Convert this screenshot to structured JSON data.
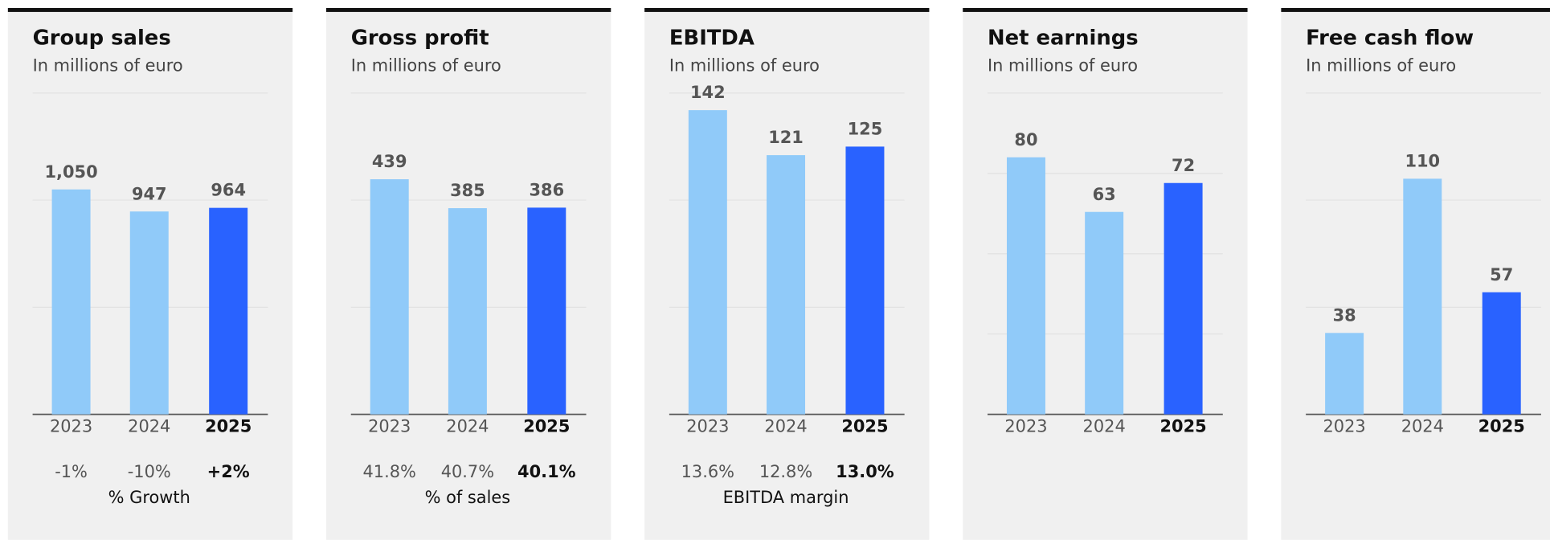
{
  "chart_data": [
    {
      "type": "bar",
      "title": "Group sales",
      "subtitle": "In millions of euro",
      "categories": [
        "2023",
        "2024",
        "2025"
      ],
      "values": [
        1050,
        947,
        964
      ],
      "value_labels": [
        "1,050",
        "947",
        "964"
      ],
      "colors": [
        "#90caf9",
        "#90caf9",
        "#2962ff"
      ],
      "highlight": 2,
      "ylim": [
        0,
        1500
      ],
      "yticks": [
        0,
        500,
        1000,
        1500
      ],
      "grid": true,
      "footer": {
        "values": [
          "-1%",
          "-10%",
          "+2%"
        ],
        "label": "% Growth"
      }
    },
    {
      "type": "bar",
      "title": "Gross profit",
      "subtitle": "In millions of euro",
      "categories": [
        "2023",
        "2024",
        "2025"
      ],
      "values": [
        439,
        385,
        386
      ],
      "colors": [
        "#90caf9",
        "#90caf9",
        "#2962ff"
      ],
      "highlight": 2,
      "ylim": [
        0,
        600
      ],
      "yticks": [
        0,
        200,
        400,
        600
      ],
      "grid": true,
      "footer": {
        "values": [
          "41.8%",
          "40.7%",
          "40.1%"
        ],
        "label": "% of sales"
      }
    },
    {
      "type": "bar",
      "title": "EBITDA",
      "subtitle": "In millions of euro",
      "categories": [
        "2023",
        "2024",
        "2025"
      ],
      "values": [
        142,
        121,
        125
      ],
      "colors": [
        "#90caf9",
        "#90caf9",
        "#2962ff"
      ],
      "highlight": 2,
      "ylim": [
        0,
        150
      ],
      "yticks": [
        0,
        50,
        100,
        150
      ],
      "grid": true,
      "footer": {
        "values": [
          "13.6%",
          "12.8%",
          "13.0%"
        ],
        "label": "EBITDA margin"
      }
    },
    {
      "type": "bar",
      "title": "Net earnings",
      "subtitle": "In millions of euro",
      "categories": [
        "2023",
        "2024",
        "2025"
      ],
      "values": [
        80,
        63,
        72
      ],
      "colors": [
        "#90caf9",
        "#90caf9",
        "#2962ff"
      ],
      "highlight": 2,
      "ylim": [
        0,
        100
      ],
      "yticks": [
        0,
        25,
        50,
        75,
        100
      ],
      "grid": true
    },
    {
      "type": "bar",
      "title": "Free cash flow",
      "subtitle": "In millions of euro",
      "categories": [
        "2023",
        "2024",
        "2025"
      ],
      "values": [
        38,
        110,
        57
      ],
      "colors": [
        "#90caf9",
        "#90caf9",
        "#2962ff"
      ],
      "highlight": 2,
      "ylim": [
        0,
        150
      ],
      "yticks": [
        0,
        50,
        100,
        150
      ],
      "grid": true
    }
  ]
}
